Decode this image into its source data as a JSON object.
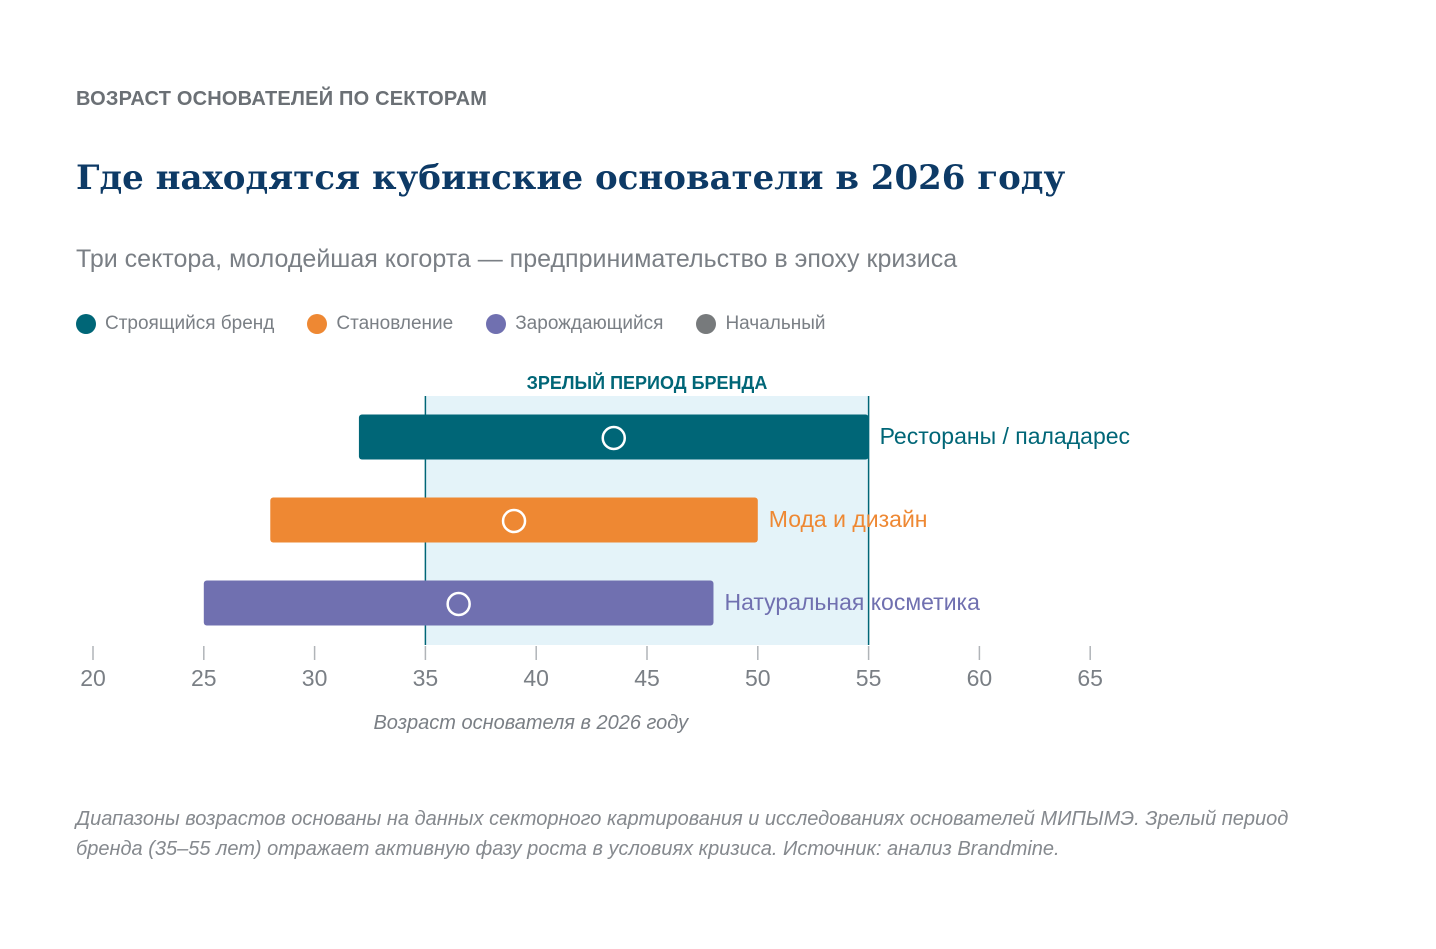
{
  "header": {
    "kicker": "ВОЗРАСТ ОСНОВАТЕЛЕЙ ПО СЕКТОРАМ",
    "title": "Где находятся кубинские основатели в 2026 году",
    "subtitle": "Три сектора, молодейшая когорта — предпринимательство в эпоху кризиса"
  },
  "legend": [
    {
      "label": "Строящийся бренд",
      "color": "#006677"
    },
    {
      "label": "Становление",
      "color": "#ee8833"
    },
    {
      "label": "Зарождающийся",
      "color": "#7070b0"
    },
    {
      "label": "Начальный",
      "color": "#777a7c"
    }
  ],
  "chart_data": {
    "type": "range-bar",
    "xlim": [
      20,
      65
    ],
    "xticks": [
      20,
      25,
      30,
      35,
      40,
      45,
      50,
      55,
      60,
      65
    ],
    "xlabel": "Возраст основателя в 2026 году",
    "highlight_band": {
      "from": 35,
      "to": 55,
      "label": "ЗРЕЛЫЙ ПЕРИОД БРЕНДА",
      "color": "#e4f3f9"
    },
    "series": [
      {
        "name": "Рестораны / паладарес",
        "start": 32,
        "end": 55,
        "median": 43.5,
        "color": "#006677",
        "label_color": "#006677"
      },
      {
        "name": "Мода и дизайн",
        "start": 28,
        "end": 50,
        "median": 39,
        "color": "#ee8833",
        "label_color": "#ee8833"
      },
      {
        "name": "Натуральная косметика",
        "start": 25,
        "end": 48,
        "median": 36.5,
        "color": "#7070b0",
        "label_color": "#7070b0"
      }
    ]
  },
  "footnote": "Диапазоны возрастов основаны на данных секторного картирования и исследованиях основателей МИПЫМЭ. Зрелый период бренда (35–55 лет) отражает активную фазу роста в условиях кризиса. Источник: анализ Brandmine."
}
